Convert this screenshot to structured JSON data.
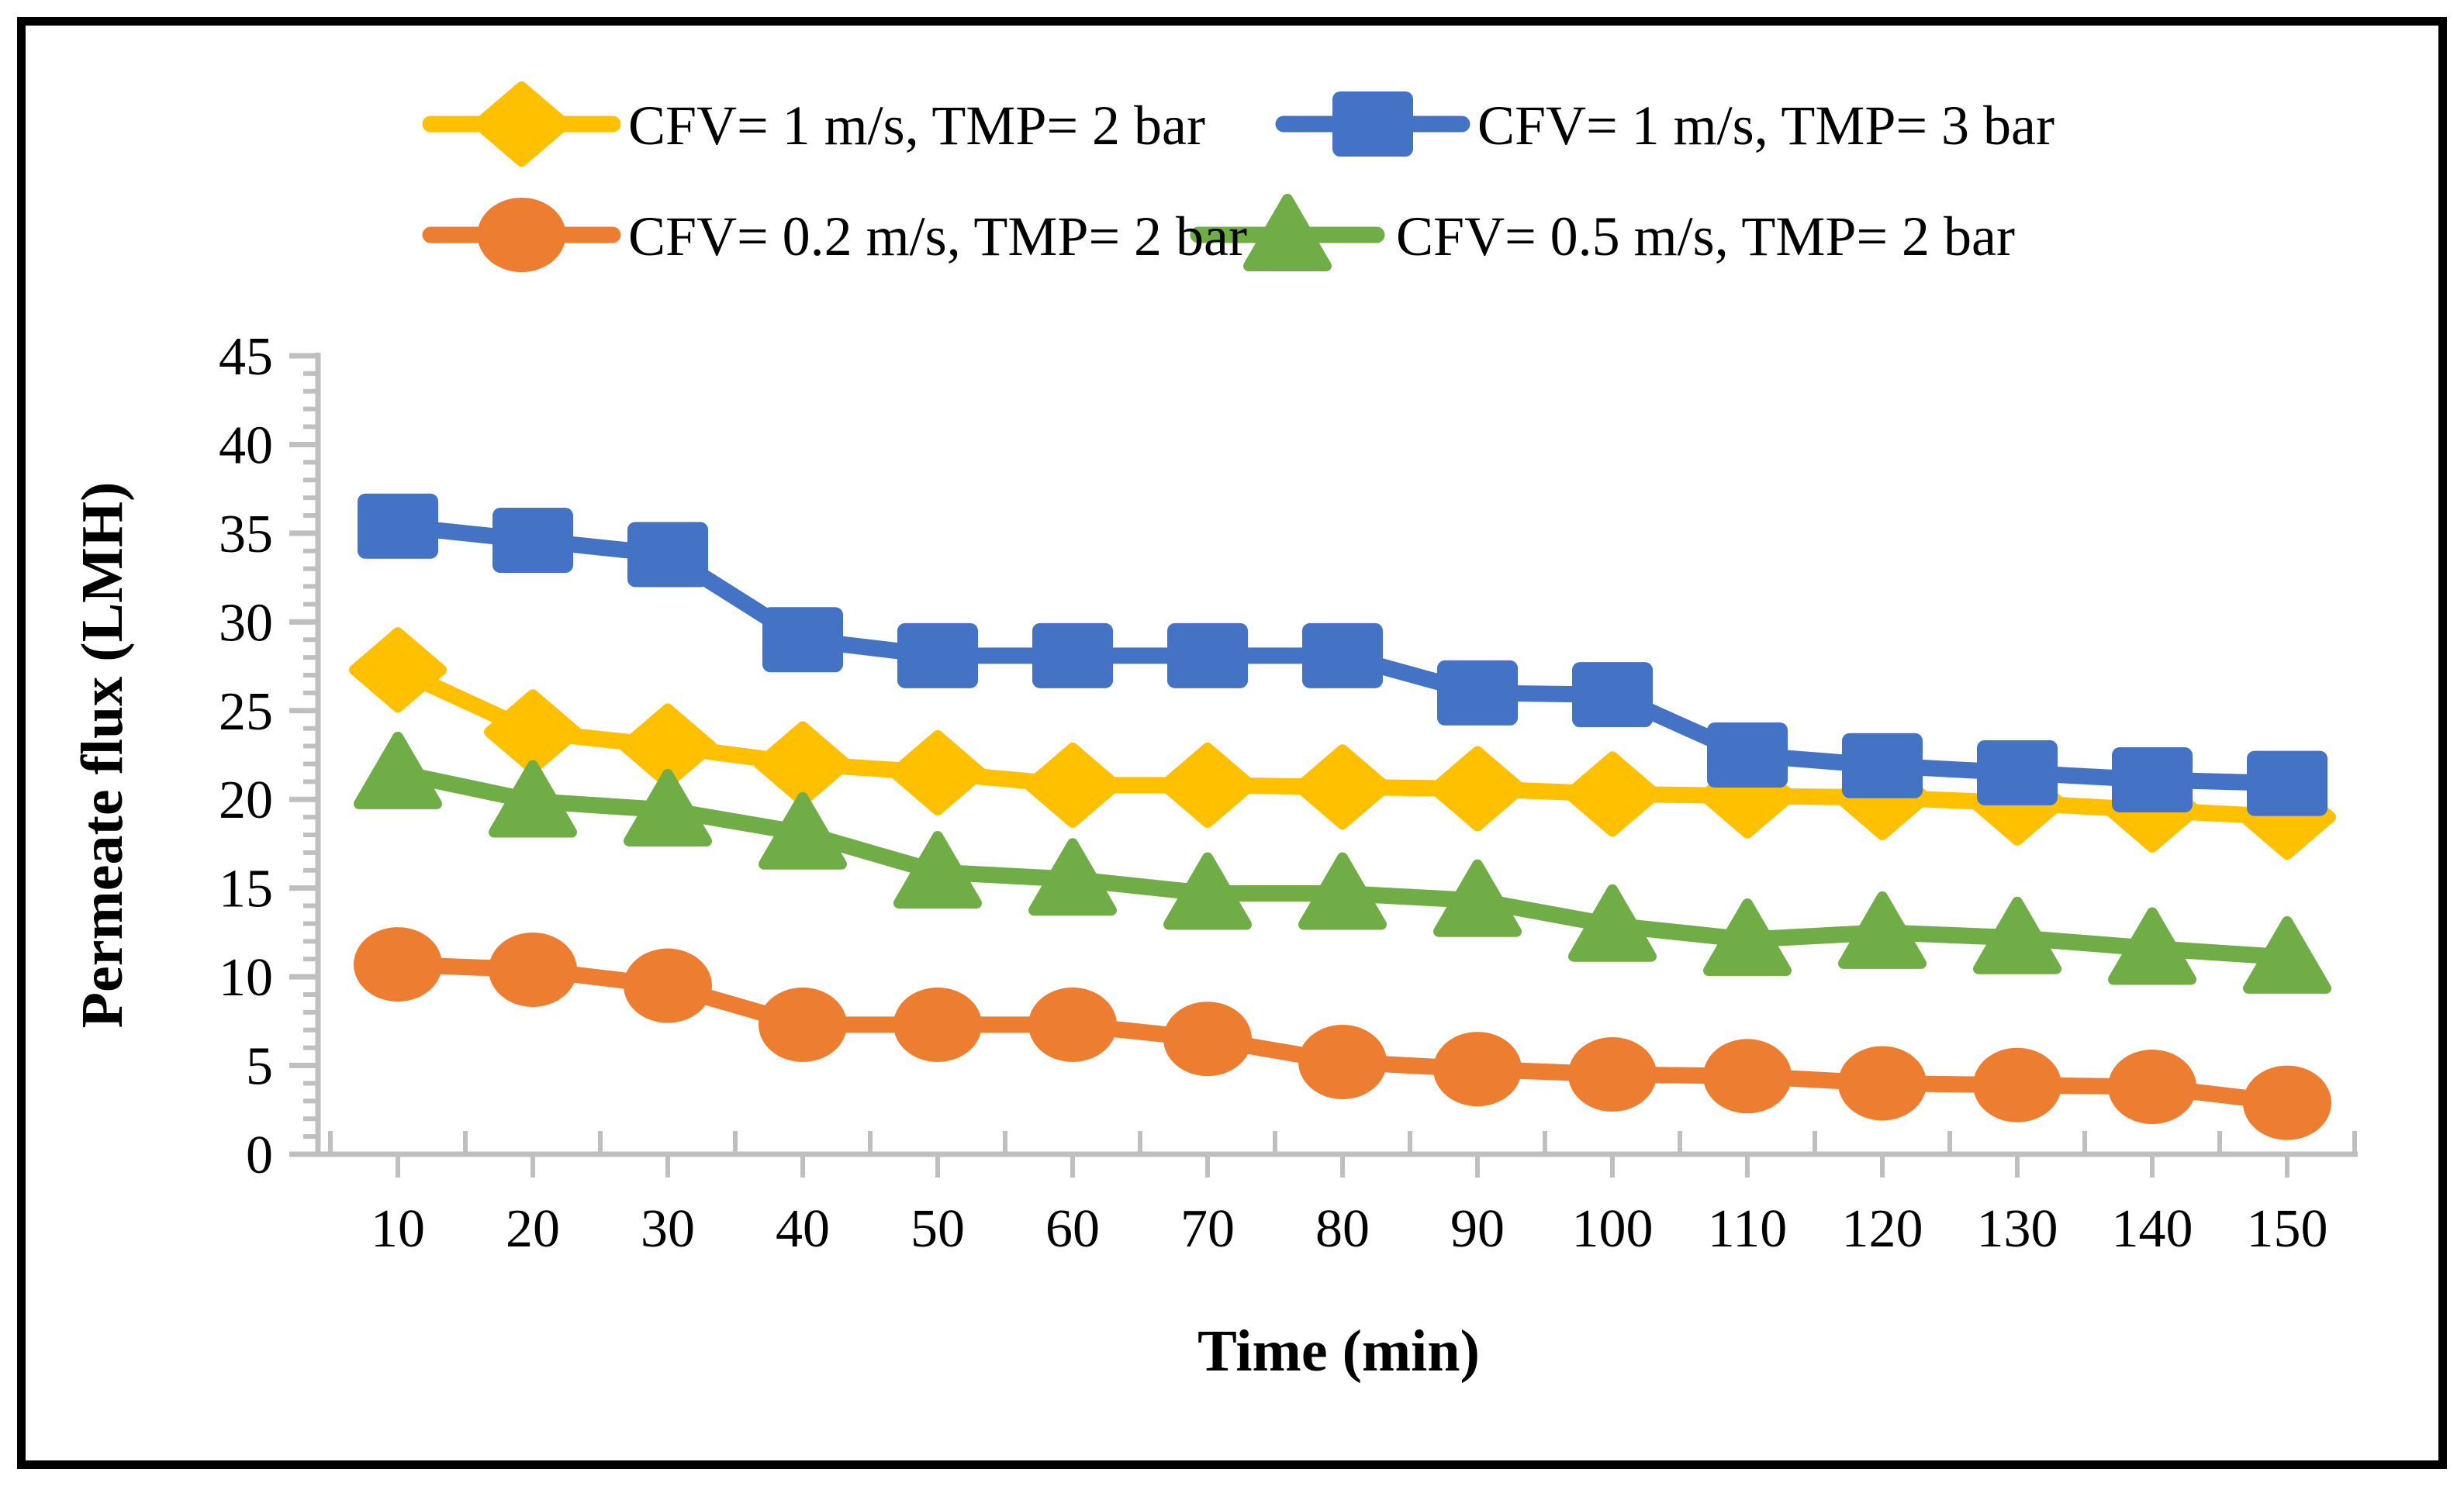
{
  "figure": {
    "background_color": "#ffffff",
    "frame_color": "#000000",
    "axis_color": "#bfbfbf",
    "text_color": "#000000"
  },
  "chart_data": {
    "type": "line",
    "title": "",
    "xlabel": "Time (min)",
    "ylabel": "Permeate flux (LMH)",
    "categories": [
      10,
      20,
      30,
      40,
      50,
      60,
      70,
      80,
      90,
      100,
      110,
      120,
      130,
      140,
      150
    ],
    "y_ticks": [
      0,
      5,
      10,
      15,
      20,
      25,
      30,
      35,
      40,
      45
    ],
    "ylim": [
      0,
      45
    ],
    "grid": false,
    "legend_position": "top",
    "series": [
      {
        "name": "CFV= 1 m/s, TMP= 2 bar",
        "marker": "diamond",
        "color": "#FFC000",
        "values": [
          27.3,
          23.8,
          23.0,
          22.0,
          21.5,
          20.8,
          20.8,
          20.7,
          20.6,
          20.3,
          20.2,
          20.1,
          19.8,
          19.4,
          19.0
        ]
      },
      {
        "name": "CFV= 1 m/s, TMP= 3 bar",
        "marker": "square",
        "color": "#4472C4",
        "values": [
          35.4,
          34.6,
          33.8,
          29.0,
          28.1,
          28.1,
          28.1,
          28.1,
          26.0,
          25.9,
          22.5,
          21.9,
          21.5,
          21.1,
          20.9
        ]
      },
      {
        "name": "CFV= 0.2 m/s, TMP= 2 bar",
        "marker": "circle",
        "color": "#ED7D31",
        "values": [
          10.7,
          10.4,
          9.5,
          7.3,
          7.3,
          7.3,
          6.5,
          5.2,
          4.8,
          4.5,
          4.4,
          4.0,
          3.9,
          3.8,
          2.9
        ]
      },
      {
        "name": "CFV= 0.5 m/s, TMP= 2 bar",
        "marker": "triangle",
        "color": "#70AD47",
        "values": [
          21.5,
          19.9,
          19.4,
          18.1,
          15.9,
          15.5,
          14.7,
          14.7,
          14.3,
          12.9,
          12.1,
          12.5,
          12.2,
          11.6,
          11.1
        ]
      }
    ]
  }
}
